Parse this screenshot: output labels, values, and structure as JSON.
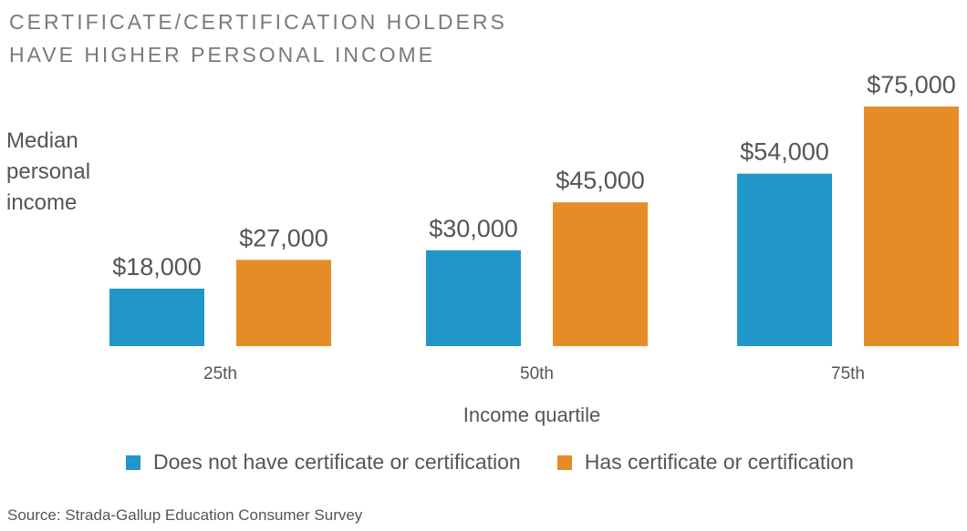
{
  "title_lines": [
    "CERTIFICATE/CERTIFICATION HOLDERS",
    "HAVE HIGHER PERSONAL INCOME"
  ],
  "ylabel_lines": [
    "Median",
    "personal",
    "income"
  ],
  "source": "Source: Strada-Gallup Education Consumer Survey",
  "colors": {
    "no_cert": "#2196c8",
    "has_cert": "#e68c26"
  },
  "chart_data": {
    "type": "bar",
    "title": "CERTIFICATE/CERTIFICATION HOLDERS HAVE HIGHER PERSONAL INCOME",
    "xlabel": "Income quartile",
    "ylabel": "Median personal income",
    "categories": [
      "25th",
      "50th",
      "75th"
    ],
    "series": [
      {
        "name": "Does not have certificate or certification",
        "values": [
          18000,
          30000,
          54000
        ],
        "labels": [
          "$18,000",
          "$30,000",
          "$54,000"
        ],
        "color": "#2196c8"
      },
      {
        "name": "Has certificate or certification",
        "values": [
          27000,
          45000,
          75000
        ],
        "labels": [
          "$27,000",
          "$45,000",
          "$75,000"
        ],
        "color": "#e68c26"
      }
    ],
    "ylim": [
      0,
      75000
    ],
    "grid": false,
    "legend_position": "bottom"
  }
}
